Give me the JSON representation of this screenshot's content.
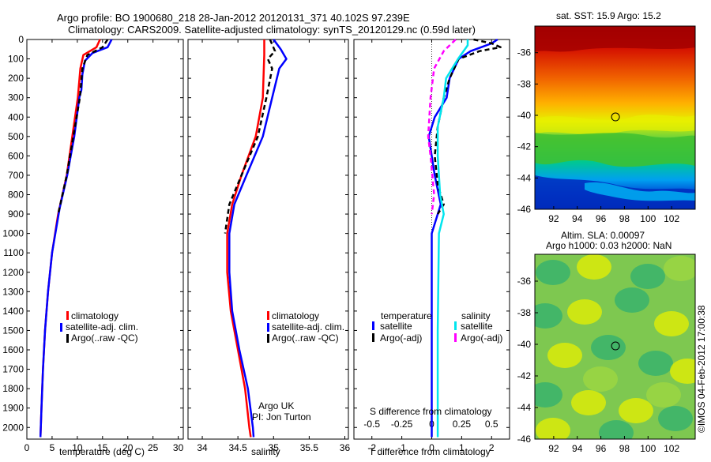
{
  "header": {
    "line1": "Argo profile: BO 1900680_218 28-Jan-2012 20120131_371 40.102S 97.239E",
    "line2": "Climatology: CARS2009. Satellite-adjusted climatology: synTS_20120129.nc (0.59d later)"
  },
  "footer": {
    "credit": "©IMOS 04-Feb-2012 17:00:38",
    "argo_label": "Argo UK",
    "pi_label": "PI: Jon Turton"
  },
  "colors": {
    "climatology": "#ff0000",
    "satellite": "#0000ff",
    "argo": "#000000",
    "salinity_satellite": "#00e5ee",
    "salinity_argo": "#ff00ff"
  },
  "legend_profile": [
    "climatology",
    "satellite-adj. clim.",
    "Argo(..raw -QC)"
  ],
  "legend_diff": {
    "temp_title": "temperature",
    "sal_title": "salinity",
    "temp_items": [
      "satellite",
      "Argo(-adj)"
    ],
    "sal_items": [
      "satellite",
      "Argo(-adj)"
    ]
  },
  "chart_data": [
    {
      "type": "line",
      "name": "temperature-profile",
      "xlabel": "temperature (deg C)",
      "ylabel": "",
      "xlim": [
        0,
        31
      ],
      "ylim": [
        2060,
        0
      ],
      "y_inverted": true,
      "xticks": [
        "0",
        "5",
        "10",
        "15",
        "20",
        "25",
        "30"
      ],
      "yticks": [
        "0",
        "100",
        "200",
        "300",
        "400",
        "500",
        "600",
        "700",
        "800",
        "900",
        "1000",
        "1100",
        "1200",
        "1300",
        "1400",
        "1500",
        "1600",
        "1700",
        "1800",
        "1900",
        "2000"
      ],
      "series": [
        {
          "name": "climatology",
          "color": "#ff0000",
          "dash": "",
          "points": [
            [
              14.5,
              0
            ],
            [
              13.8,
              40
            ],
            [
              11.2,
              80
            ],
            [
              10.6,
              150
            ],
            [
              10.1,
              300
            ],
            [
              9.0,
              500
            ],
            [
              7.9,
              700
            ],
            [
              6.2,
              900
            ],
            [
              5.0,
              1100
            ],
            [
              4.2,
              1300
            ],
            [
              3.6,
              1500
            ],
            [
              3.2,
              1700
            ],
            [
              2.9,
              1900
            ],
            [
              2.7,
              2050
            ]
          ]
        },
        {
          "name": "satellite-adj. clim.",
          "color": "#0000ff",
          "dash": "",
          "points": [
            [
              16.8,
              0
            ],
            [
              16.0,
              40
            ],
            [
              13.0,
              70
            ],
            [
              11.5,
              110
            ],
            [
              11.0,
              180
            ],
            [
              10.8,
              260
            ],
            [
              10.4,
              300
            ],
            [
              9.4,
              500
            ],
            [
              8.0,
              700
            ],
            [
              6.5,
              870
            ],
            [
              5.0,
              1100
            ],
            [
              4.2,
              1300
            ],
            [
              3.6,
              1500
            ],
            [
              3.2,
              1700
            ],
            [
              2.9,
              1900
            ],
            [
              2.7,
              2050
            ]
          ]
        },
        {
          "name": "Argo(..raw -QC)",
          "color": "#000000",
          "dash": "6,4",
          "points": [
            [
              16.0,
              0
            ],
            [
              15.0,
              40
            ],
            [
              12.0,
              80
            ],
            [
              11.0,
              150
            ],
            [
              10.5,
              300
            ],
            [
              9.2,
              500
            ],
            [
              7.9,
              700
            ],
            [
              6.2,
              900
            ]
          ]
        }
      ]
    },
    {
      "type": "line",
      "name": "salinity-profile",
      "xlabel": "salinity",
      "ylabel": "",
      "xlim": [
        33.8,
        36.05
      ],
      "ylim": [
        2060,
        0
      ],
      "y_inverted": true,
      "xticks": [
        "34",
        "34.5",
        "35",
        "35.5",
        "36"
      ],
      "series": [
        {
          "name": "climatology",
          "color": "#ff0000",
          "dash": "",
          "points": [
            [
              34.87,
              0
            ],
            [
              34.87,
              80
            ],
            [
              34.85,
              300
            ],
            [
              34.75,
              500
            ],
            [
              34.55,
              700
            ],
            [
              34.42,
              850
            ],
            [
              34.35,
              1000
            ],
            [
              34.35,
              1200
            ],
            [
              34.4,
              1400
            ],
            [
              34.5,
              1600
            ],
            [
              34.6,
              1800
            ],
            [
              34.66,
              2000
            ],
            [
              34.68,
              2050
            ]
          ]
        },
        {
          "name": "satellite-adj. clim.",
          "color": "#0000ff",
          "dash": "",
          "points": [
            [
              35.0,
              0
            ],
            [
              35.1,
              50
            ],
            [
              35.18,
              100
            ],
            [
              35.08,
              150
            ],
            [
              34.98,
              300
            ],
            [
              34.85,
              500
            ],
            [
              34.62,
              700
            ],
            [
              34.45,
              850
            ],
            [
              34.38,
              1000
            ],
            [
              34.38,
              1200
            ],
            [
              34.42,
              1400
            ],
            [
              34.52,
              1600
            ],
            [
              34.64,
              1800
            ],
            [
              34.71,
              2000
            ],
            [
              34.72,
              2050
            ]
          ]
        },
        {
          "name": "Argo(..raw -QC)",
          "color": "#000000",
          "dash": "6,4",
          "points": [
            [
              34.95,
              0
            ],
            [
              35.02,
              60
            ],
            [
              34.92,
              100
            ],
            [
              34.98,
              150
            ],
            [
              34.9,
              300
            ],
            [
              34.78,
              500
            ],
            [
              34.55,
              700
            ],
            [
              34.38,
              850
            ],
            [
              34.32,
              1000
            ]
          ]
        }
      ]
    },
    {
      "type": "line",
      "name": "difference-profile",
      "xlabel": "T difference from climatology",
      "x2label": "S difference from climatology",
      "xlim": [
        -2.6,
        2.6
      ],
      "x2lim": [
        -0.65,
        0.65
      ],
      "ylim": [
        2060,
        0
      ],
      "y_inverted": true,
      "xticks": [
        "-2",
        "-1",
        "0",
        "1",
        "2"
      ],
      "x2ticks": [
        "-0.5",
        "-0.25",
        "0",
        "0.25",
        "0.5"
      ],
      "series": [
        {
          "name": "temperature satellite",
          "color": "#0000ff",
          "dash": "",
          "points": [
            [
              2.2,
              0
            ],
            [
              2.0,
              20
            ],
            [
              1.3,
              60
            ],
            [
              0.9,
              100
            ],
            [
              0.6,
              200
            ],
            [
              0.5,
              300
            ],
            [
              0.1,
              400
            ],
            [
              -0.1,
              500
            ],
            [
              0.0,
              600
            ],
            [
              0.1,
              700
            ],
            [
              0.3,
              850
            ],
            [
              0.0,
              1000
            ],
            [
              0.0,
              1500
            ],
            [
              0.0,
              2050
            ]
          ]
        },
        {
          "name": "temperature Argo(-adj)",
          "color": "#000000",
          "dash": "6,4",
          "points": [
            [
              1.4,
              0
            ],
            [
              2.0,
              20
            ],
            [
              2.3,
              40
            ],
            [
              1.6,
              60
            ],
            [
              0.9,
              100
            ],
            [
              0.6,
              200
            ],
            [
              0.4,
              300
            ],
            [
              0.2,
              450
            ],
            [
              0.1,
              600
            ],
            [
              0.2,
              750
            ],
            [
              0.4,
              850
            ],
            [
              0.2,
              900
            ]
          ]
        },
        {
          "name": "salinity satellite",
          "color": "#00e5ee",
          "dash": "",
          "points": [
            [
              0.3,
              0
            ],
            [
              0.3,
              30
            ],
            [
              0.22,
              100
            ],
            [
              0.12,
              200
            ],
            [
              0.1,
              300
            ],
            [
              0.05,
              450
            ],
            [
              0.05,
              600
            ],
            [
              0.07,
              800
            ],
            [
              0.1,
              900
            ],
            [
              0.06,
              1000
            ],
            [
              0.05,
              1500
            ],
            [
              0.05,
              2050
            ]
          ]
        },
        {
          "name": "salinity Argo(-adj)",
          "color": "#ff00ff",
          "dash": "6,4",
          "points": [
            [
              0.2,
              0
            ],
            [
              0.1,
              60
            ],
            [
              0.02,
              150
            ],
            [
              -0.01,
              300
            ],
            [
              -0.03,
              500
            ],
            [
              -0.01,
              600
            ],
            [
              0.02,
              800
            ],
            [
              0.0,
              900
            ]
          ]
        }
      ]
    },
    {
      "type": "heatmap",
      "name": "sst-map",
      "title": "sat. SST: 15.9 Argo: 15.2",
      "xticks": [
        "92",
        "94",
        "96",
        "98",
        "100",
        "102"
      ],
      "yticks": [
        "-36",
        "-38",
        "-40",
        "-42",
        "-44",
        "-46"
      ],
      "xlim": [
        90.4,
        104.0
      ],
      "ylim": [
        -46,
        -34.3
      ],
      "marker": {
        "lon": 97.239,
        "lat": -40.102
      }
    },
    {
      "type": "heatmap",
      "name": "sla-map",
      "title": "Altim. SLA: 0.00097",
      "subtitle": "Argo h1000: 0.03 h2000: NaN",
      "xticks": [
        "92",
        "94",
        "96",
        "98",
        "100",
        "102"
      ],
      "yticks": [
        "-36",
        "-38",
        "-40",
        "-42",
        "-44",
        "-46"
      ],
      "xlim": [
        90.4,
        104.0
      ],
      "ylim": [
        -46,
        -34.3
      ],
      "marker": {
        "lon": 97.239,
        "lat": -40.102
      }
    }
  ]
}
